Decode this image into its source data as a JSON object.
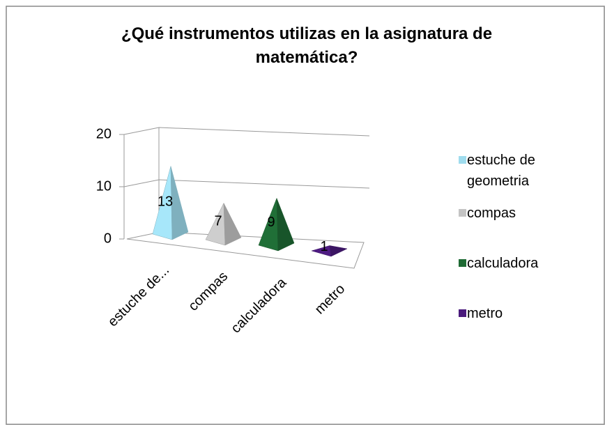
{
  "chart_data": {
    "type": "pyramid",
    "title": "¿Qué instrumentos utilizas en la asignatura de matemática?",
    "categories": [
      "estuche de...",
      "compas",
      "calculadora",
      "metro"
    ],
    "legend": [
      "estuche de geometria",
      "compas",
      "calculadora",
      "metro"
    ],
    "values": [
      13,
      7,
      9,
      1
    ],
    "colors": [
      "#9fdcee",
      "#c4c4c4",
      "#1e6a34",
      "#4a1a7c"
    ],
    "ylim": [
      0,
      20
    ],
    "yticks": [
      0,
      10,
      20
    ],
    "grid": true,
    "legend_position": "right"
  }
}
